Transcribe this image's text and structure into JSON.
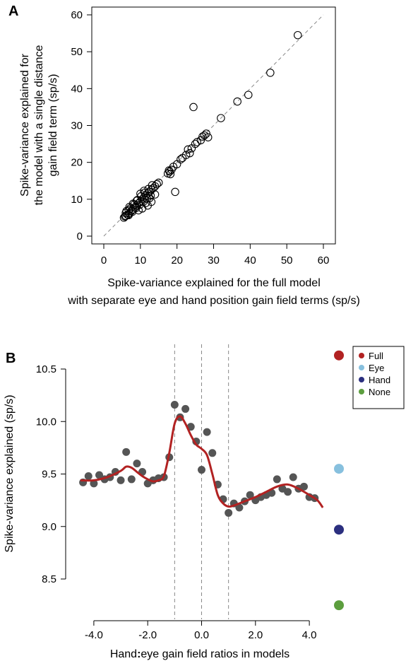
{
  "panels": {
    "a_label": "A",
    "b_label": "B"
  },
  "chart_data": [
    {
      "panel": "A",
      "type": "scatter",
      "xlabel_line1": "Spike-variance explained for the full model",
      "xlabel_line2": "with separate eye and hand position gain field terms (sp/s)",
      "ylabel_line1": "Spike-variance explained for",
      "ylabel_line2": "the model with a single distance",
      "ylabel_line3": "gain field term (sp/s)",
      "xlim": [
        0,
        60
      ],
      "ylim": [
        0,
        60
      ],
      "xticks": [
        "0",
        "10",
        "20",
        "30",
        "40",
        "50",
        "60"
      ],
      "yticks": [
        "0",
        "10",
        "20",
        "30",
        "40",
        "50",
        "60"
      ],
      "reference_line": "y = x (dashed)",
      "grid": false,
      "points": [
        [
          5.5,
          5.0
        ],
        [
          6.0,
          5.5
        ],
        [
          6.5,
          5.8
        ],
        [
          7.0,
          6.2
        ],
        [
          7.5,
          6.8
        ],
        [
          8.0,
          7.2
        ],
        [
          8.5,
          7.8
        ],
        [
          9.0,
          8.3
        ],
        [
          9.5,
          8.9
        ],
        [
          10.0,
          9.4
        ],
        [
          10.5,
          10.0
        ],
        [
          11.0,
          10.5
        ],
        [
          11.5,
          11.0
        ],
        [
          12.0,
          11.6
        ],
        [
          12.5,
          12.0
        ],
        [
          13.0,
          12.6
        ],
        [
          13.5,
          13.0
        ],
        [
          14.0,
          13.5
        ],
        [
          14.5,
          14.1
        ],
        [
          15.0,
          14.5
        ],
        [
          6.2,
          6.8
        ],
        [
          7.2,
          7.5
        ],
        [
          8.3,
          8.6
        ],
        [
          9.2,
          9.8
        ],
        [
          10.2,
          10.8
        ],
        [
          11.2,
          11.8
        ],
        [
          12.2,
          12.8
        ],
        [
          13.2,
          13.8
        ],
        [
          6.8,
          5.7
        ],
        [
          7.8,
          6.6
        ],
        [
          8.8,
          7.6
        ],
        [
          9.8,
          8.5
        ],
        [
          10.8,
          9.3
        ],
        [
          11.8,
          10.2
        ],
        [
          12.8,
          11.0
        ],
        [
          7.0,
          7.9
        ],
        [
          8.0,
          8.8
        ],
        [
          9.0,
          9.6
        ],
        [
          10.0,
          11.5
        ],
        [
          11.0,
          12.3
        ],
        [
          6.0,
          6.3
        ],
        [
          6.8,
          7.0
        ],
        [
          5.8,
          5.3
        ],
        [
          9.5,
          7.0
        ],
        [
          10.5,
          7.5
        ],
        [
          11.5,
          9.0
        ],
        [
          12.5,
          10.3
        ],
        [
          12.0,
          8.3
        ],
        [
          13.0,
          9.3
        ],
        [
          14.0,
          11.3
        ],
        [
          17.5,
          17.0
        ],
        [
          18.0,
          17.5
        ],
        [
          18.5,
          18.0
        ],
        [
          18.2,
          16.8
        ],
        [
          17.8,
          17.8
        ],
        [
          19.0,
          18.8
        ],
        [
          19.5,
          12.0
        ],
        [
          20.0,
          19.5
        ],
        [
          21.0,
          20.8
        ],
        [
          21.5,
          21.2
        ],
        [
          22.5,
          22.0
        ],
        [
          23.0,
          23.5
        ],
        [
          23.5,
          22.5
        ],
        [
          24.0,
          23.8
        ],
        [
          25.0,
          25.0
        ],
        [
          25.5,
          25.5
        ],
        [
          26.5,
          26.0
        ],
        [
          27.0,
          27.0
        ],
        [
          27.5,
          27.3
        ],
        [
          28.0,
          27.8
        ],
        [
          28.5,
          26.8
        ],
        [
          24.5,
          35.0
        ],
        [
          32.0,
          32.0
        ],
        [
          36.5,
          36.5
        ],
        [
          39.5,
          38.3
        ],
        [
          45.5,
          44.3
        ],
        [
          53.0,
          54.5
        ]
      ]
    },
    {
      "panel": "B",
      "type": "scatter",
      "xlabel_prefix": "Hand",
      "xlabel_sep": ":",
      "xlabel_suffix": "eye gain field ratios in models",
      "ylabel": "Spike-variance explained (sp/s)",
      "xlim": [
        -4.6,
        4.6
      ],
      "ylim": [
        8.35,
        10.5
      ],
      "xticks": [
        "-4.0",
        "-2.0",
        "0.0",
        "2.0",
        "4.0"
      ],
      "yticks": [
        "8.5",
        "9.0",
        "9.5",
        "10.0",
        "10.5"
      ],
      "vertical_dashed_lines_x": [
        -1.0,
        0.0,
        1.0
      ],
      "grid": false,
      "legend_position": "top-right",
      "legend": [
        {
          "label": "Full",
          "color": "#b22222"
        },
        {
          "label": "Eye",
          "color": "#87c0de"
        },
        {
          "label": "Hand",
          "color": "#2b2f7f"
        },
        {
          "label": "None",
          "color": "#5c9e3e"
        }
      ],
      "point_color": "#555555",
      "smooth_line_color": "#b22222",
      "model_points": [
        {
          "model": "Full",
          "y": 10.63,
          "color": "#b22222"
        },
        {
          "model": "Eye",
          "y": 9.55,
          "color": "#87c0de"
        },
        {
          "model": "Hand",
          "y": 8.97,
          "color": "#2b2f7f"
        },
        {
          "model": "None",
          "y": 8.25,
          "color": "#5c9e3e"
        }
      ],
      "series": [
        {
          "x": [
            -4.4,
            -4.2,
            -4.0,
            -3.8,
            -3.6,
            -3.4,
            -3.2,
            -3.0,
            -2.8,
            -2.6,
            -2.4,
            -2.2,
            -2.0,
            -1.8,
            -1.6,
            -1.4,
            -1.2,
            -1.0,
            -0.8,
            -0.6,
            -0.4,
            -0.2,
            0.0,
            0.2,
            0.4,
            0.6,
            0.8,
            1.0,
            1.2,
            1.4,
            1.6,
            1.8,
            2.0,
            2.2,
            2.4,
            2.6,
            2.8,
            3.0,
            3.2,
            3.4,
            3.6,
            3.8,
            4.0,
            4.2
          ],
          "y": [
            9.42,
            9.48,
            9.41,
            9.49,
            9.45,
            9.47,
            9.52,
            9.44,
            9.71,
            9.45,
            9.6,
            9.52,
            9.41,
            9.44,
            9.46,
            9.47,
            9.66,
            10.16,
            10.04,
            10.12,
            9.95,
            9.81,
            9.54,
            9.9,
            9.7,
            9.4,
            9.26,
            9.13,
            9.22,
            9.18,
            9.24,
            9.3,
            9.25,
            9.28,
            9.3,
            9.32,
            9.45,
            9.36,
            9.33,
            9.47,
            9.36,
            9.38,
            9.28,
            9.27
          ]
        },
        {
          "name": "",
          "kind": "smooth",
          "x": [
            -4.5,
            -4.0,
            -3.5,
            -3.0,
            -2.8,
            -2.6,
            -2.4,
            -2.2,
            -2.0,
            -1.8,
            -1.6,
            -1.4,
            -1.2,
            -1.0,
            -0.8,
            -0.6,
            -0.4,
            -0.2,
            0.0,
            0.2,
            0.4,
            0.6,
            0.8,
            1.0,
            1.2,
            1.6,
            2.0,
            2.4,
            2.8,
            3.2,
            3.6,
            4.0,
            4.3,
            4.5
          ],
          "y": [
            9.44,
            9.44,
            9.47,
            9.53,
            9.57,
            9.56,
            9.52,
            9.48,
            9.45,
            9.43,
            9.44,
            9.48,
            9.7,
            9.98,
            10.05,
            9.98,
            9.87,
            9.78,
            9.74,
            9.68,
            9.5,
            9.3,
            9.22,
            9.19,
            9.2,
            9.24,
            9.28,
            9.33,
            9.38,
            9.4,
            9.36,
            9.3,
            9.25,
            9.18
          ]
        }
      ]
    }
  ]
}
